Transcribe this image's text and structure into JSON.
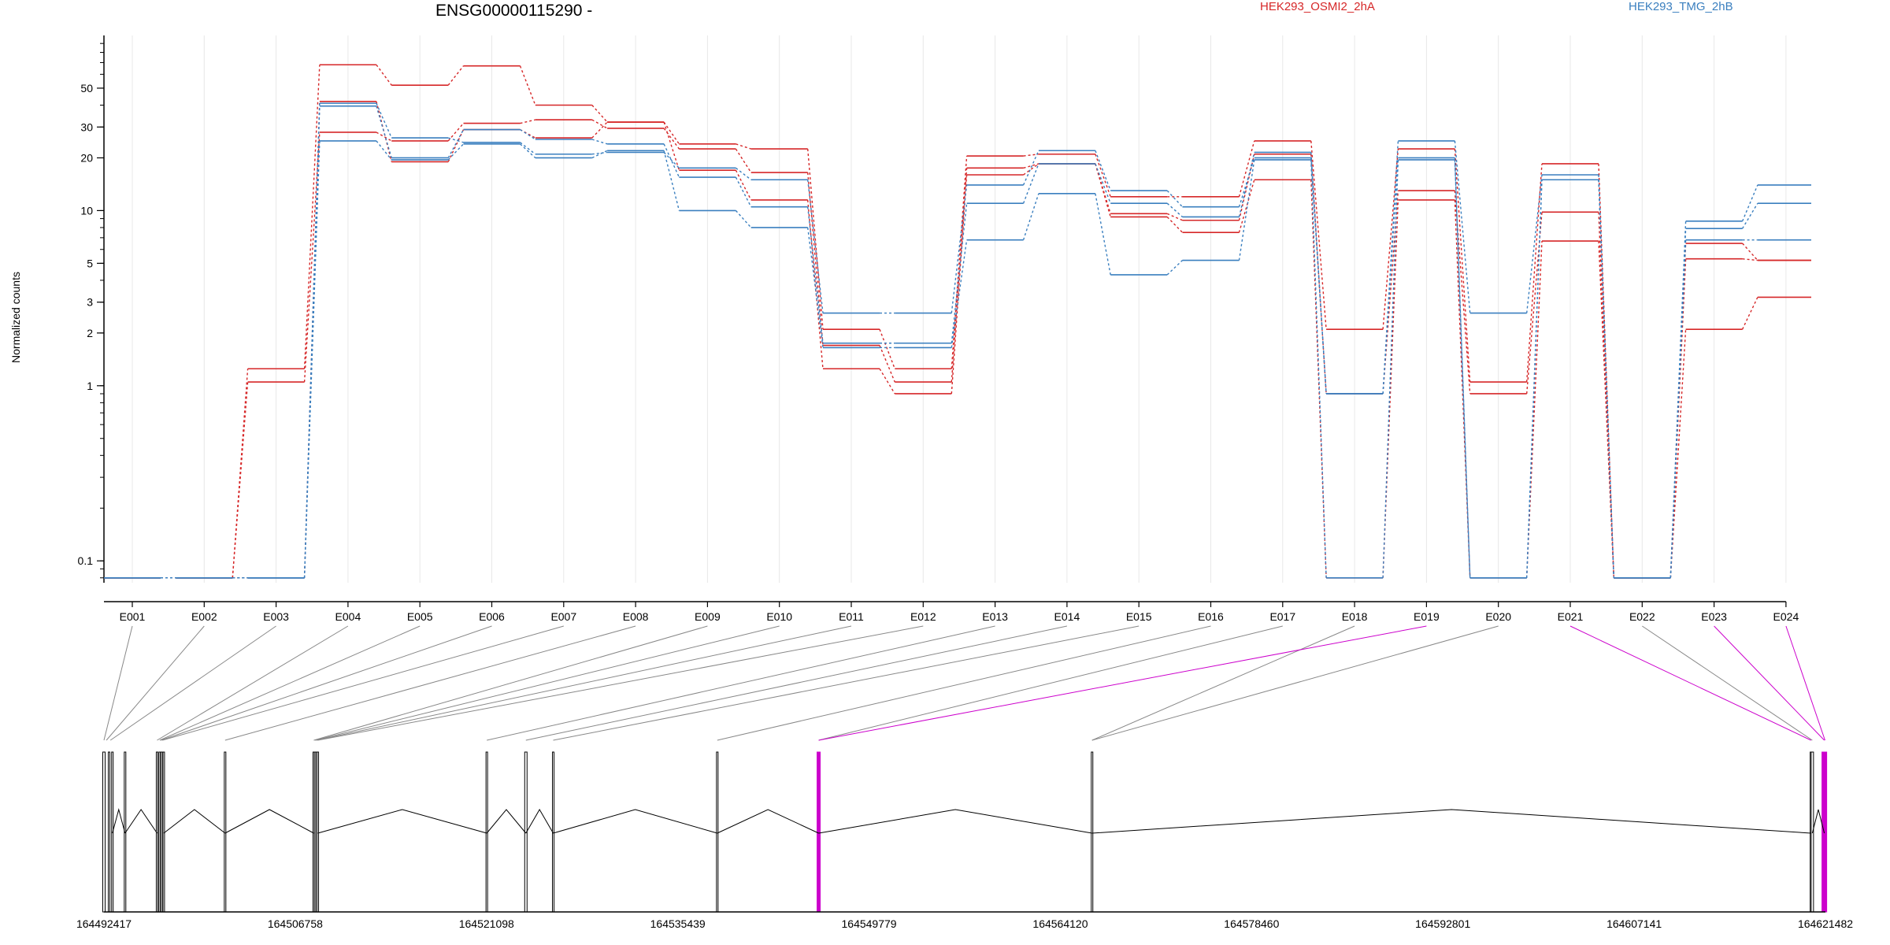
{
  "header": {
    "title": "ENSG00000115290 -",
    "legend_a": "HEK293_OSMI2_2hA",
    "legend_b": "HEK293_TMG_2hB"
  },
  "colors": {
    "red": "#d62728",
    "blue": "#3a7fbf",
    "magenta": "#cc00cc",
    "gray": "#888888",
    "grid": "#e8e8e8"
  },
  "chart_data": {
    "type": "line",
    "title": "ENSG00000115290 -",
    "ylabel": "Normalized counts",
    "yscale": "log",
    "ylim": [
      0.075,
      100
    ],
    "yticks": [
      0.1,
      1,
      2,
      3,
      5,
      10,
      20,
      30,
      50
    ],
    "ytick_labels": [
      "0.1",
      "1",
      "2",
      "3",
      "5",
      "10",
      "20",
      "30",
      "50"
    ],
    "categories": [
      "E001",
      "E002",
      "E003",
      "E004",
      "E005",
      "E006",
      "E007",
      "E008",
      "E009",
      "E010",
      "E011",
      "E012",
      "E013",
      "E014",
      "E015",
      "E016",
      "E017",
      "E018",
      "E019",
      "E020",
      "E021",
      "E022",
      "E023",
      "E024"
    ],
    "series": [
      {
        "group": "HEK293_OSMI2_2hA",
        "color": "red",
        "values": [
          0.08,
          0.08,
          1.25,
          68,
          52,
          67,
          40,
          32,
          24,
          22.5,
          2.1,
          1.25,
          20.5,
          21,
          12,
          12,
          25,
          2.1,
          22.5,
          1.05,
          18.5,
          0.08,
          6.5,
          5.2
        ]
      },
      {
        "group": "HEK293_OSMI2_2hA",
        "color": "red",
        "values": [
          0.08,
          0.08,
          1.05,
          28,
          25,
          31.5,
          33,
          29.5,
          22.5,
          16.5,
          1.7,
          1.05,
          17.5,
          18.5,
          9.6,
          8.8,
          21,
          0.9,
          13,
          0.9,
          9.8,
          0.08,
          5.3,
          5.2
        ]
      },
      {
        "group": "HEK293_OSMI2_2hA",
        "color": "red",
        "values": [
          0.08,
          0.08,
          0.08,
          42,
          19,
          29,
          26,
          32,
          17,
          11.5,
          1.25,
          0.9,
          16,
          18.5,
          9.2,
          7.5,
          15,
          0.08,
          11.5,
          0.08,
          6.7,
          0.08,
          2.1,
          3.2
        ]
      },
      {
        "group": "HEK293_TMG_2hB",
        "color": "blue",
        "values": [
          0.08,
          0.08,
          0.08,
          41,
          26,
          24.5,
          21,
          21.5,
          17.5,
          15,
          2.6,
          2.6,
          14,
          22,
          13,
          10.5,
          20,
          0.9,
          25,
          2.6,
          16,
          0.08,
          8.7,
          14
        ]
      },
      {
        "group": "HEK293_TMG_2hB",
        "color": "blue",
        "values": [
          0.08,
          0.08,
          0.08,
          39.5,
          20,
          29,
          25.5,
          24,
          15.5,
          10.5,
          1.75,
          1.75,
          11,
          18.5,
          11,
          9.2,
          21.5,
          0.9,
          20,
          0.08,
          15,
          0.08,
          7.9,
          11
        ]
      },
      {
        "group": "HEK293_TMG_2hB",
        "color": "blue",
        "values": [
          0.08,
          0.08,
          0.08,
          25,
          19.5,
          24,
          20,
          22,
          10,
          8,
          1.65,
          1.65,
          6.8,
          12.5,
          4.3,
          5.2,
          19.5,
          0.08,
          19.5,
          0.08,
          15,
          0.08,
          6.8,
          6.8
        ]
      }
    ],
    "genome": {
      "ticks": [
        "164492417",
        "164506758",
        "164521098",
        "164535439",
        "164549779",
        "164564120",
        "164578460",
        "164592801",
        "164607141",
        "164621482"
      ],
      "start": 164492417,
      "end": 164621482
    }
  }
}
